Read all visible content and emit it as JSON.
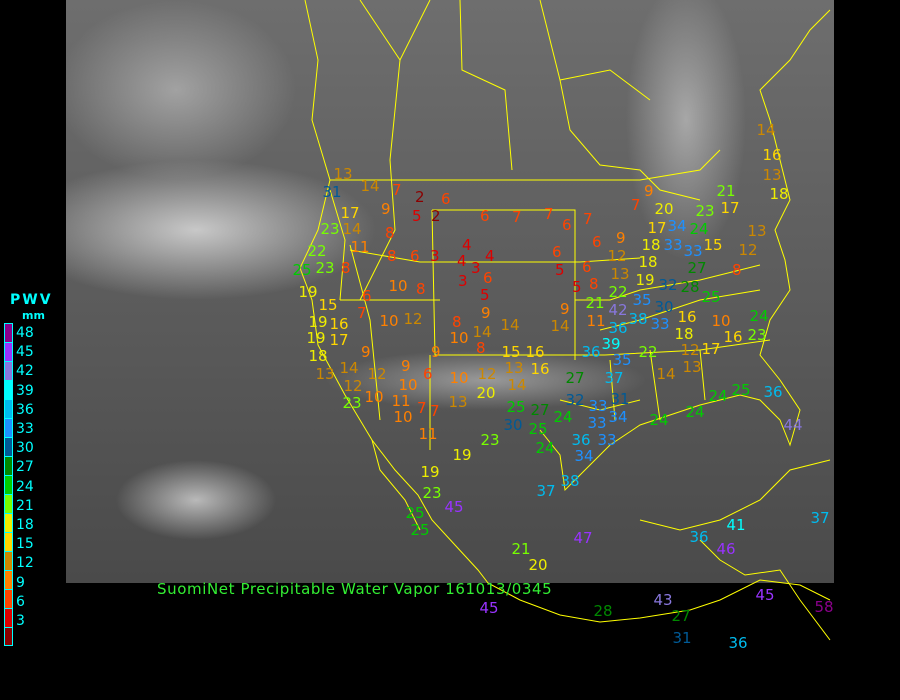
{
  "caption": "SuomiNet Precipitable Water Vapor 161013/0345",
  "legend": {
    "title": "PWV",
    "unit": "mm",
    "labels": [
      "48",
      "45",
      "42",
      "39",
      "36",
      "33",
      "30",
      "27",
      "24",
      "21",
      "18",
      "15",
      "12",
      "9",
      "6",
      "3"
    ],
    "colors": [
      "#8b008b",
      "#9933ff",
      "#8877dd",
      "#00ffff",
      "#00bbee",
      "#1e90ff",
      "#005a96",
      "#008800",
      "#00cc00",
      "#77ff00",
      "#eeee00",
      "#ffd700",
      "#cc8800",
      "#ff8000",
      "#ff4400",
      "#dd0000",
      "#8b0000"
    ]
  },
  "map": {
    "background": "grayscale infrared satellite",
    "boundary_color": "#ffff00"
  },
  "stations": [
    31,
    13,
    14,
    7,
    2,
    6,
    5,
    2,
    17,
    23,
    14,
    9,
    6,
    7,
    7,
    6,
    7,
    8,
    11,
    22,
    8,
    6,
    3,
    4,
    4,
    4,
    3,
    6,
    3,
    5,
    25,
    23,
    8,
    6,
    5,
    6,
    5,
    19,
    15,
    6,
    10,
    8,
    9,
    7,
    16,
    19,
    10,
    12,
    8,
    14,
    14,
    9,
    14,
    19,
    17,
    10,
    8,
    18,
    9,
    9,
    15,
    16,
    36,
    13,
    14,
    12,
    12,
    9,
    6,
    10,
    10,
    12,
    13,
    16,
    27,
    37,
    35,
    20,
    14,
    10,
    11,
    23,
    10,
    7,
    7,
    13,
    25,
    27,
    24,
    32,
    33,
    34,
    31,
    30,
    25,
    33,
    11,
    23,
    24,
    36,
    33,
    34,
    19,
    38,
    19,
    23,
    45,
    37,
    25,
    25,
    21,
    20,
    47,
    36,
    41,
    46,
    37,
    44,
    36,
    25,
    24,
    24,
    14,
    13,
    12,
    17,
    18,
    16,
    10,
    16,
    23,
    24,
    22,
    24,
    8,
    15,
    12,
    13,
    17,
    21,
    23,
    20,
    17,
    34,
    33,
    18,
    24,
    33,
    27,
    28,
    19,
    32,
    30,
    35,
    25,
    33,
    38,
    36,
    42,
    39,
    22,
    21,
    11,
    13,
    8,
    12,
    18,
    6,
    9,
    7,
    9,
    14,
    16,
    13,
    18,
    45,
    28,
    27,
    43,
    31,
    36,
    58,
    45
  ]
}
